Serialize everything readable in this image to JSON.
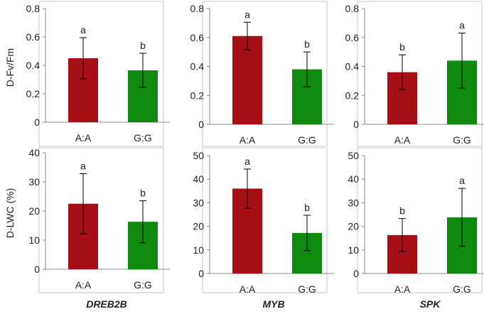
{
  "colors": {
    "aa": "#a50f15",
    "gg": "#0f8a0f"
  },
  "row_labels": [
    "D-Fv/Fm",
    "D-LWC (%)"
  ],
  "genes": [
    "DREB2B",
    "MYB",
    "SPK"
  ],
  "chart_data": [
    {
      "type": "bar",
      "title": "",
      "gene": "DREB2B",
      "ylabel": "D-Fv/Fm",
      "categories": [
        "A:A",
        "G:G"
      ],
      "values": [
        0.45,
        0.365
      ],
      "errors": [
        0.145,
        0.12
      ],
      "letters": [
        "a",
        "b"
      ],
      "ylim": [
        0,
        0.8
      ],
      "yticks": [
        0,
        0.2,
        0.4,
        0.6,
        0.8
      ],
      "ytick_labels": [
        "0",
        "0.2",
        "0.4",
        "0.6",
        "0.8"
      ]
    },
    {
      "type": "bar",
      "title": "",
      "gene": "MYB",
      "ylabel": "D-Fv/Fm",
      "categories": [
        "A:A",
        "G:G"
      ],
      "values": [
        0.61,
        0.38
      ],
      "errors": [
        0.095,
        0.12
      ],
      "letters": [
        "a",
        "b"
      ],
      "ylim": [
        0,
        0.8
      ],
      "yticks": [
        0,
        0.2,
        0.4,
        0.6,
        0.8
      ],
      "ytick_labels": [
        "0",
        "0.2",
        "0.4",
        "0.6",
        "0.8"
      ]
    },
    {
      "type": "bar",
      "title": "",
      "gene": "SPK",
      "ylabel": "D-Fv/Fm",
      "categories": [
        "A:A",
        "G:G"
      ],
      "values": [
        0.36,
        0.44
      ],
      "errors": [
        0.12,
        0.19
      ],
      "letters": [
        "b",
        "a"
      ],
      "ylim": [
        0,
        0.8
      ],
      "yticks": [
        0,
        0.2,
        0.4,
        0.6,
        0.8
      ],
      "ytick_labels": [
        "0",
        "0.2",
        "0.4",
        "0.6",
        "0.8"
      ]
    },
    {
      "type": "bar",
      "title": "",
      "gene": "DREB2B",
      "ylabel": "D-LWC (%)",
      "categories": [
        "A:A",
        "G:G"
      ],
      "values": [
        22.5,
        16.3
      ],
      "errors": [
        10.3,
        7.2
      ],
      "letters": [
        "a",
        "b"
      ],
      "ylim": [
        0,
        40
      ],
      "yticks": [
        0,
        10,
        20,
        30,
        40
      ],
      "ytick_labels": [
        "0",
        "10",
        "20",
        "30",
        "40"
      ]
    },
    {
      "type": "bar",
      "title": "",
      "gene": "MYB",
      "ylabel": "D-LWC (%)",
      "categories": [
        "A:A",
        "G:G"
      ],
      "values": [
        36,
        17.2
      ],
      "errors": [
        8.3,
        7.5
      ],
      "letters": [
        "a",
        "b"
      ],
      "ylim": [
        0,
        50
      ],
      "yticks": [
        0,
        10,
        20,
        30,
        40,
        50
      ],
      "ytick_labels": [
        "0",
        "10",
        "20",
        "30",
        "40",
        "50"
      ]
    },
    {
      "type": "bar",
      "title": "",
      "gene": "SPK",
      "ylabel": "D-LWC (%)",
      "categories": [
        "A:A",
        "G:G"
      ],
      "values": [
        16.3,
        23.8
      ],
      "errors": [
        7,
        12.3
      ],
      "letters": [
        "b",
        "a"
      ],
      "ylim": [
        0,
        50
      ],
      "yticks": [
        0,
        10,
        20,
        30,
        40,
        50
      ],
      "ytick_labels": [
        "0",
        "10",
        "20",
        "30",
        "40",
        "50"
      ]
    }
  ]
}
